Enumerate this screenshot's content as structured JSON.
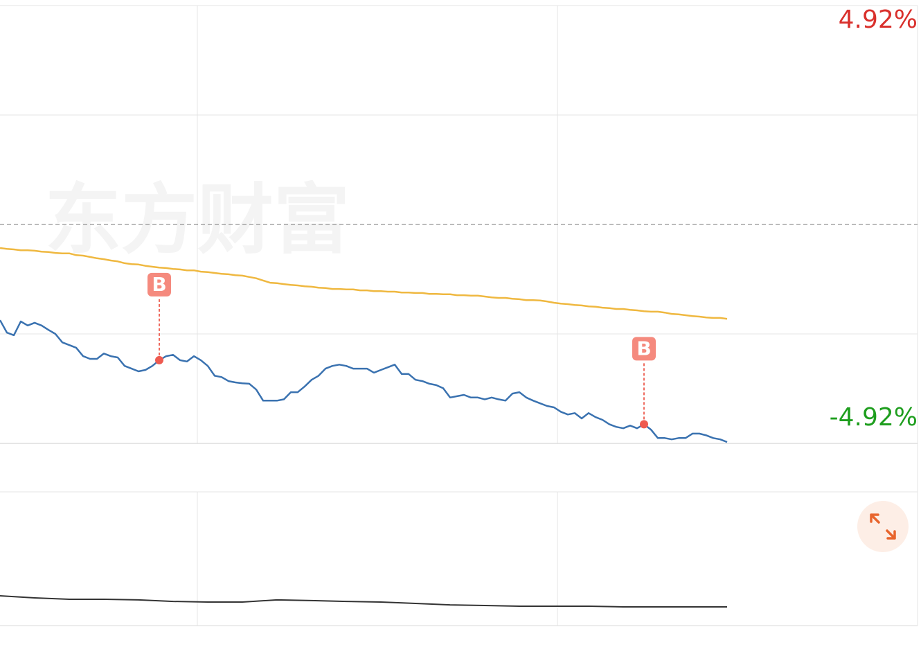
{
  "chart_data": [
    {
      "type": "line",
      "watermark": "东方财富",
      "ylim": [
        -4.92,
        4.92
      ],
      "yticks": [
        {
          "value": 4.92,
          "label": "4.92%",
          "color": "#d9302c"
        },
        {
          "value": -4.92,
          "label": "-4.92%",
          "color": "#1e9e1e"
        }
      ],
      "gridlines": [
        2.46,
        0,
        -2.46
      ],
      "series": [
        {
          "color": "#3a72b0",
          "values": [
            -2.15,
            -2.43,
            -2.49,
            -2.18,
            -2.27,
            -2.21,
            -2.27,
            -2.37,
            -2.46,
            -2.65,
            -2.71,
            -2.77,
            -2.96,
            -3.02,
            -3.02,
            -2.9,
            -2.96,
            -2.99,
            -3.18,
            -3.24,
            -3.3,
            -3.27,
            -3.18,
            -3.05,
            -2.96,
            -2.93,
            -3.05,
            -3.08,
            -2.96,
            -3.05,
            -3.18,
            -3.4,
            -3.43,
            -3.52,
            -3.55,
            -3.57,
            -3.58,
            -3.71,
            -3.96,
            -3.96,
            -3.96,
            -3.93,
            -3.77,
            -3.77,
            -3.64,
            -3.49,
            -3.4,
            -3.24,
            -3.18,
            -3.15,
            -3.18,
            -3.24,
            -3.24,
            -3.24,
            -3.33,
            -3.27,
            -3.21,
            -3.15,
            -3.36,
            -3.36,
            -3.49,
            -3.52,
            -3.58,
            -3.61,
            -3.68,
            -3.89,
            -3.86,
            -3.83,
            -3.89,
            -3.89,
            -3.93,
            -3.89,
            -3.93,
            -3.96,
            -3.8,
            -3.77,
            -3.89,
            -3.96,
            -4.02,
            -4.08,
            -4.11,
            -4.21,
            -4.27,
            -4.24,
            -4.36,
            -4.24,
            -4.33,
            -4.39,
            -4.49,
            -4.55,
            -4.58,
            -4.52,
            -4.58,
            -4.49,
            -4.61,
            -4.8,
            -4.8,
            -4.83,
            -4.8,
            -4.8,
            -4.7,
            -4.7,
            -4.74,
            -4.8,
            -4.83,
            -4.89
          ]
        },
        {
          "color": "#efb840",
          "values": [
            -0.53,
            -0.55,
            -0.56,
            -0.58,
            -0.58,
            -0.59,
            -0.61,
            -0.62,
            -0.64,
            -0.65,
            -0.65,
            -0.69,
            -0.7,
            -0.73,
            -0.76,
            -0.78,
            -0.81,
            -0.83,
            -0.87,
            -0.89,
            -0.9,
            -0.93,
            -0.95,
            -0.97,
            -0.98,
            -1.0,
            -1.01,
            -1.03,
            -1.03,
            -1.06,
            -1.07,
            -1.09,
            -1.11,
            -1.12,
            -1.14,
            -1.15,
            -1.18,
            -1.21,
            -1.26,
            -1.31,
            -1.32,
            -1.34,
            -1.36,
            -1.37,
            -1.39,
            -1.4,
            -1.42,
            -1.43,
            -1.45,
            -1.45,
            -1.46,
            -1.46,
            -1.48,
            -1.48,
            -1.5,
            -1.5,
            -1.51,
            -1.51,
            -1.53,
            -1.53,
            -1.54,
            -1.54,
            -1.56,
            -1.56,
            -1.57,
            -1.57,
            -1.59,
            -1.59,
            -1.6,
            -1.6,
            -1.62,
            -1.64,
            -1.65,
            -1.65,
            -1.67,
            -1.68,
            -1.7,
            -1.7,
            -1.71,
            -1.73,
            -1.76,
            -1.78,
            -1.79,
            -1.81,
            -1.82,
            -1.84,
            -1.85,
            -1.87,
            -1.88,
            -1.9,
            -1.9,
            -1.92,
            -1.93,
            -1.95,
            -1.96,
            -1.96,
            -1.98,
            -2.01,
            -2.02,
            -2.04,
            -2.06,
            -2.07,
            -2.09,
            -2.1,
            -2.1,
            -2.12
          ]
        }
      ],
      "signals": [
        {
          "label": "B",
          "point": 23
        },
        {
          "label": "B",
          "point": 93
        }
      ]
    },
    {
      "type": "line",
      "ylim": [
        0,
        100
      ],
      "series": [
        {
          "color": "#333333",
          "values": [
            22.3,
            20.7,
            19.7,
            19.7,
            19.2,
            18.1,
            17.6,
            17.6,
            19.2,
            18.7,
            18.1,
            17.6,
            16.6,
            15.5,
            15.0,
            14.5,
            14.5,
            14.5,
            14.0,
            14.0,
            14.0,
            14.0
          ]
        }
      ]
    }
  ]
}
